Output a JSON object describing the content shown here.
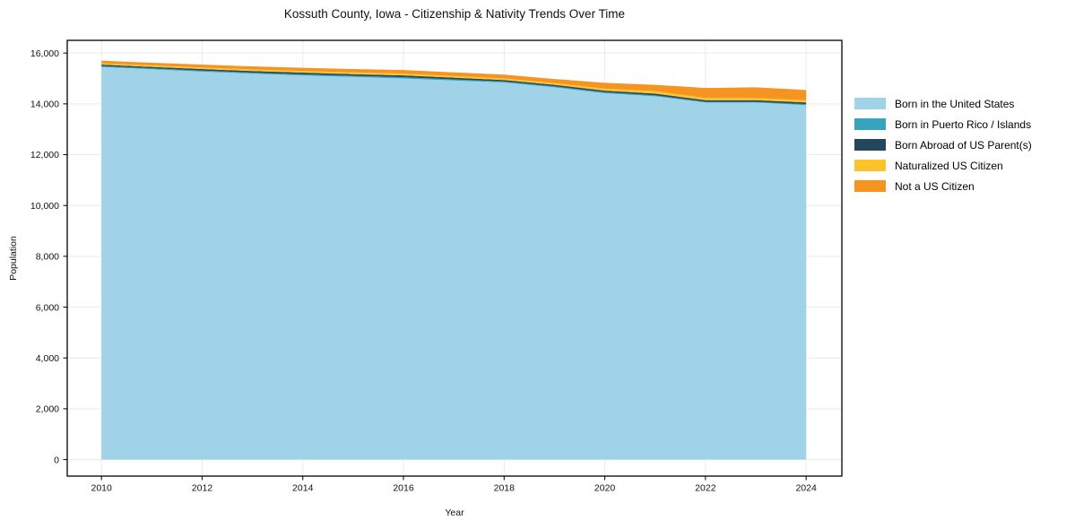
{
  "chart_data": {
    "type": "area",
    "stacked": true,
    "title": "Kossuth County, Iowa - Citizenship & Nativity Trends Over Time",
    "xlabel": "Year",
    "ylabel": "Population",
    "x": [
      2010,
      2011,
      2012,
      2013,
      2014,
      2015,
      2016,
      2017,
      2018,
      2019,
      2020,
      2021,
      2022,
      2023,
      2024
    ],
    "series": [
      {
        "name": "Born in the United States",
        "color": "#A0D3E7",
        "values": [
          15450,
          15360,
          15270,
          15190,
          15120,
          15060,
          15000,
          14920,
          14840,
          14650,
          14420,
          14300,
          14050,
          14050,
          13950
        ]
      },
      {
        "name": "Born in Puerto Rico / Islands",
        "color": "#36A3BF",
        "values": [
          40,
          40,
          40,
          40,
          45,
          45,
          50,
          45,
          40,
          40,
          40,
          40,
          35,
          35,
          40
        ]
      },
      {
        "name": "Born Abroad of US Parent(s)",
        "color": "#23485B",
        "values": [
          55,
          55,
          60,
          60,
          65,
          65,
          70,
          65,
          60,
          60,
          60,
          65,
          60,
          60,
          65
        ]
      },
      {
        "name": "Naturalized US Citizen",
        "color": "#FCC32C",
        "values": [
          50,
          55,
          60,
          65,
          65,
          70,
          70,
          65,
          60,
          70,
          80,
          95,
          90,
          85,
          90
        ]
      },
      {
        "name": "Not a US Citizen",
        "color": "#F59420",
        "values": [
          105,
          110,
          115,
          120,
          125,
          130,
          140,
          145,
          150,
          160,
          230,
          250,
          390,
          420,
          400
        ]
      }
    ],
    "xticks": [
      2010,
      2012,
      2014,
      2016,
      2018,
      2020,
      2022,
      2024
    ],
    "yticks": [
      0,
      2000,
      4000,
      6000,
      8000,
      10000,
      12000,
      14000,
      16000
    ],
    "ytick_labels": [
      "0",
      "2,000",
      "4,000",
      "6,000",
      "8,000",
      "10,000",
      "12,000",
      "14,000",
      "16,000"
    ],
    "xlim": [
      2009.32,
      2024.71
    ],
    "ylim": [
      -650,
      16500
    ],
    "grid": true,
    "grid_color": "#eaeaea",
    "spine_color": "#000000",
    "legend_position": "right",
    "legend_frame": false
  }
}
